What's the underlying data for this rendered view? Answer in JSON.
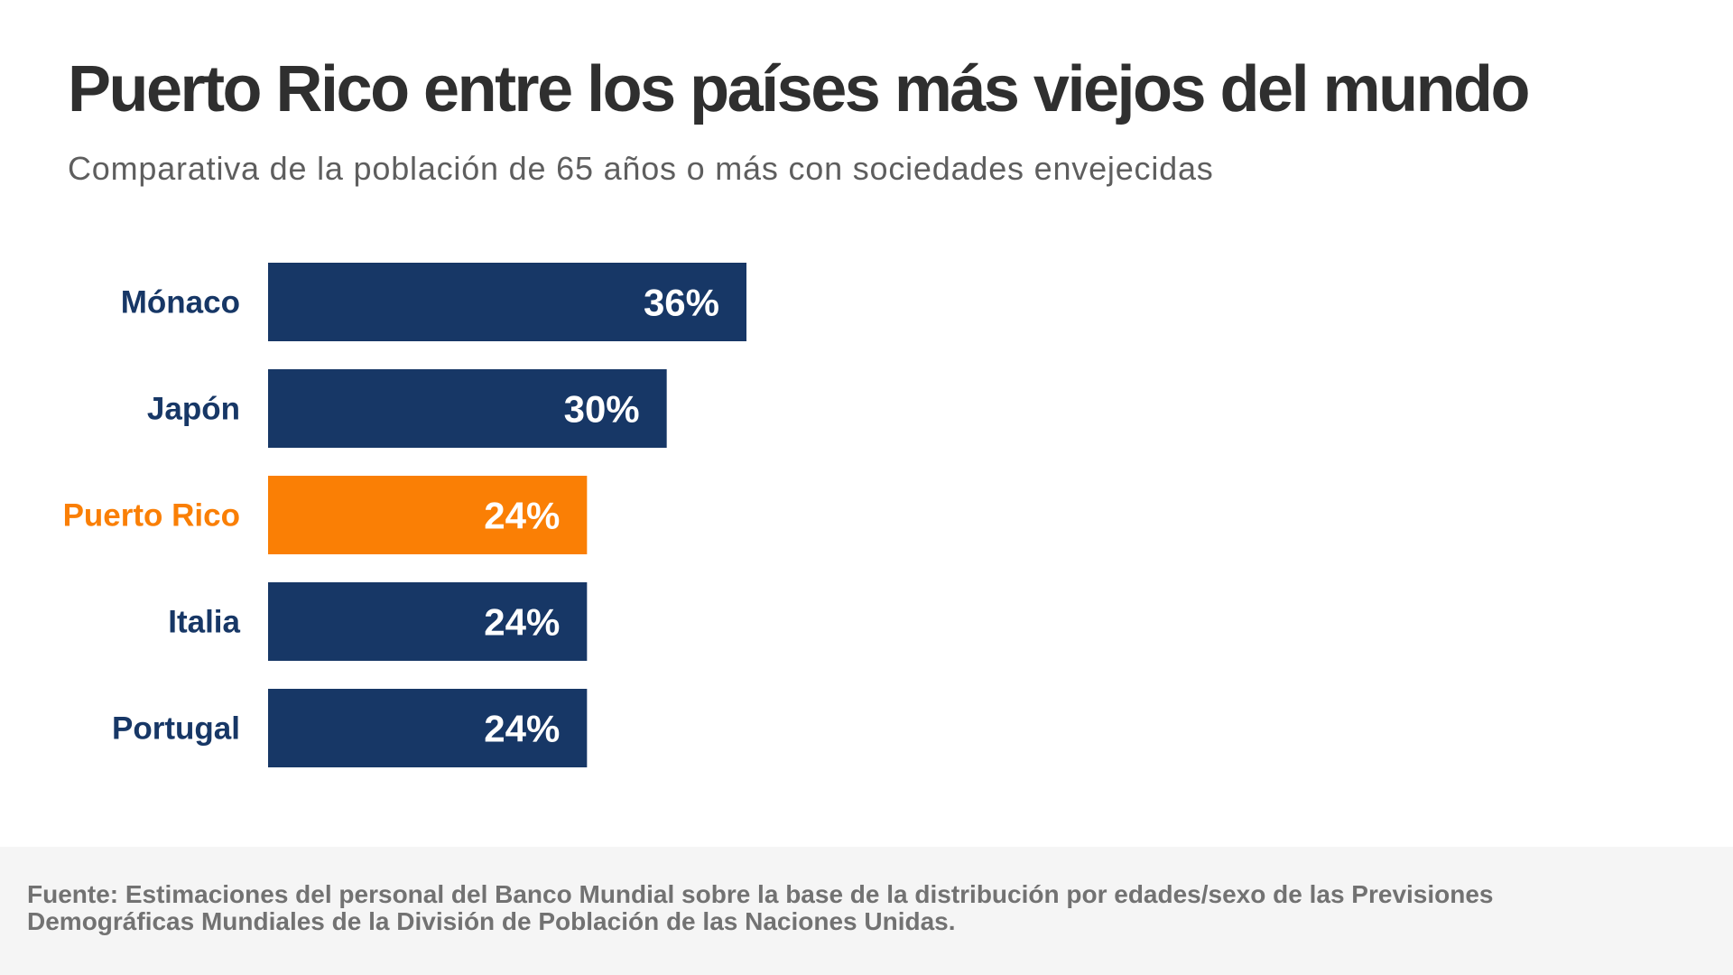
{
  "title": "Puerto Rico entre los países más viejos del mundo",
  "subtitle": "Comparativa de la población de 65 años o más con sociedades envejecidas",
  "source": "Fuente: Estimaciones del personal del Banco Mundial sobre la base de la distribución por edades/sexo de las Previsiones Demográficas Mundiales de la División de Población de las Naciones Unidas.",
  "colors": {
    "bar_default": "#173766",
    "bar_highlight": "#fa7f05",
    "label_default": "#173766",
    "label_highlight": "#fa7f05",
    "value_text": "#ffffff"
  },
  "chart_data": {
    "type": "bar",
    "orientation": "horizontal",
    "title": "Puerto Rico entre los países más viejos del mundo",
    "subtitle": "Comparativa de la población de 65 años o más con sociedades envejecidas",
    "categories": [
      "Mónaco",
      "Japón",
      "Puerto Rico",
      "Italia",
      "Portugal"
    ],
    "values": [
      36,
      30,
      24,
      24,
      24
    ],
    "value_labels": [
      "36%",
      "30%",
      "24%",
      "24%",
      "24%"
    ],
    "highlight": "Puerto Rico",
    "unit": "%",
    "xlim": [
      0,
      36
    ],
    "grid": false,
    "legend": "none"
  }
}
